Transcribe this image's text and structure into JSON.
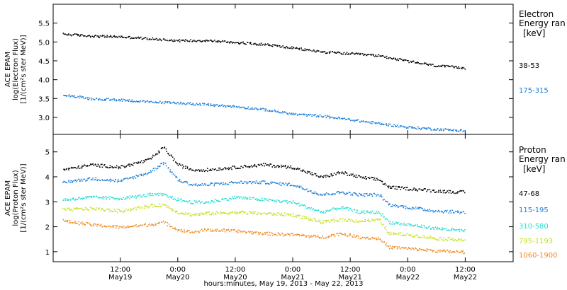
{
  "chart_data": [
    {
      "type": "scatter",
      "panel": "electron",
      "ylabel": [
        "ACE EPAM",
        "log(Electron Flux)",
        "[1/(cm²s ster MeV)]"
      ],
      "ylim": [
        2.55,
        6.0
      ],
      "yticks": [
        "3.0",
        "3.5",
        "4.0",
        "4.5",
        "5.0",
        "5.5"
      ],
      "legend_title": [
        "Electron",
        "Energy ran"
      ],
      "legend_units": "[keV]",
      "series": [
        {
          "name": "38-53",
          "color": "#000000",
          "x": [
            0,
            6,
            12,
            18,
            24,
            30,
            36,
            42,
            48,
            54,
            60,
            66,
            72,
            78,
            84
          ],
          "y": [
            5.22,
            5.17,
            5.15,
            5.1,
            5.05,
            5.05,
            5.0,
            4.95,
            4.85,
            4.75,
            4.7,
            4.65,
            4.5,
            4.38,
            4.32
          ]
        },
        {
          "name": "175-315",
          "color": "#1a7fd8",
          "x": [
            0,
            6,
            12,
            18,
            24,
            30,
            36,
            42,
            48,
            54,
            60,
            66,
            72,
            78,
            84
          ],
          "y": [
            3.62,
            3.5,
            3.48,
            3.42,
            3.4,
            3.35,
            3.3,
            3.22,
            3.1,
            3.05,
            2.95,
            2.85,
            2.75,
            2.7,
            2.66
          ]
        }
      ]
    },
    {
      "type": "scatter",
      "panel": "proton",
      "ylabel": [
        "ACE EPAM",
        "log(Proton Flux)",
        "[1/(cm²s ster MeV)]"
      ],
      "ylim": [
        0.6,
        5.7
      ],
      "yticks": [
        "1",
        "2",
        "3",
        "4",
        "5"
      ],
      "legend_title": [
        "Proton",
        "Energy ran"
      ],
      "legend_units": "[keV]",
      "series": [
        {
          "name": "47-68",
          "color": "#000000",
          "x": [
            0,
            6,
            12,
            18,
            21,
            24,
            27,
            30,
            36,
            42,
            48,
            54,
            58,
            62,
            66,
            68,
            72,
            78,
            84
          ],
          "y": [
            4.3,
            4.5,
            4.4,
            4.7,
            5.2,
            4.5,
            4.3,
            4.3,
            4.4,
            4.5,
            4.4,
            4.0,
            4.2,
            4.0,
            3.9,
            3.6,
            3.55,
            3.45,
            3.4
          ]
        },
        {
          "name": "115-195",
          "color": "#1a7fd8",
          "x": [
            0,
            6,
            12,
            18,
            21,
            24,
            27,
            30,
            36,
            42,
            48,
            54,
            58,
            62,
            66,
            68,
            72,
            78,
            84
          ],
          "y": [
            3.8,
            3.95,
            3.85,
            4.2,
            4.6,
            3.9,
            3.7,
            3.7,
            3.8,
            3.8,
            3.7,
            3.3,
            3.4,
            3.3,
            3.3,
            2.9,
            2.8,
            2.65,
            2.6
          ]
        },
        {
          "name": "310-580",
          "color": "#22ddd0",
          "x": [
            0,
            6,
            12,
            18,
            21,
            24,
            27,
            30,
            36,
            42,
            48,
            54,
            58,
            62,
            66,
            68,
            72,
            78,
            84
          ],
          "y": [
            3.1,
            3.2,
            3.15,
            3.3,
            3.3,
            3.1,
            3.0,
            3.0,
            3.2,
            3.1,
            3.0,
            2.6,
            2.8,
            2.6,
            2.6,
            2.2,
            2.1,
            1.95,
            1.85
          ]
        },
        {
          "name": "795-1193",
          "color": "#c4e020",
          "x": [
            0,
            6,
            12,
            18,
            21,
            24,
            27,
            30,
            36,
            42,
            48,
            54,
            58,
            62,
            66,
            68,
            72,
            78,
            84
          ],
          "y": [
            2.7,
            2.75,
            2.65,
            2.85,
            2.9,
            2.6,
            2.5,
            2.55,
            2.6,
            2.55,
            2.5,
            2.2,
            2.3,
            2.25,
            2.3,
            1.75,
            1.7,
            1.55,
            1.5
          ]
        },
        {
          "name": "1060-1900",
          "color": "#f08a20",
          "x": [
            0,
            6,
            12,
            18,
            21,
            24,
            27,
            30,
            36,
            42,
            48,
            54,
            58,
            62,
            66,
            68,
            72,
            78,
            84
          ],
          "y": [
            2.25,
            2.1,
            2.0,
            2.1,
            2.2,
            1.9,
            1.8,
            1.9,
            1.85,
            1.75,
            1.7,
            1.6,
            1.75,
            1.6,
            1.55,
            1.2,
            1.15,
            1.05,
            1.0
          ]
        }
      ]
    }
  ],
  "x_axis": {
    "range_hours": [
      -2,
      94
    ],
    "ticks": [
      {
        "hours": 12,
        "time": "12:00",
        "date": "May19"
      },
      {
        "hours": 24,
        "time": "0:00",
        "date": "May20"
      },
      {
        "hours": 36,
        "time": "12:00",
        "date": "May20"
      },
      {
        "hours": 48,
        "time": "0:00",
        "date": "May21"
      },
      {
        "hours": 60,
        "time": "12:00",
        "date": "May21"
      },
      {
        "hours": 72,
        "time": "0:00",
        "date": "May22"
      },
      {
        "hours": 84,
        "time": "12:00",
        "date": "May22"
      }
    ],
    "title": "hours:minutes, May 19, 2013 - May 22, 2013"
  }
}
